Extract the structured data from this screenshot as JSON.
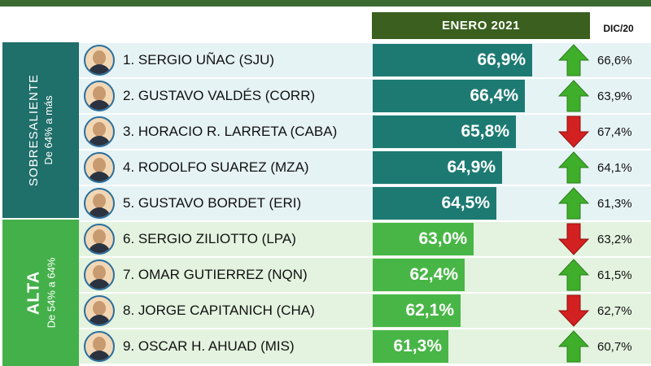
{
  "header": {
    "month": "ENERO 2021",
    "previous": "DIC/20"
  },
  "groups": [
    {
      "title": "SOBRESALIENTE",
      "subtitle": "De 64% a más"
    },
    {
      "title": "ALTA",
      "subtitle": "De 54% a 64%"
    }
  ],
  "colors": {
    "sobresaliente": "#1d7a72",
    "alta": "#48b646",
    "up": "#3fae2a",
    "down": "#d32020"
  },
  "chart_data": {
    "type": "bar",
    "title": "ENERO 2021",
    "categories": [
      "1. SERGIO UÑAC (SJU)",
      "2. GUSTAVO VALDÉS  (CORR)",
      "3. HORACIO R. LARRETA (CABA)",
      "4. RODOLFO SUAREZ (MZA)",
      "5. GUSTAVO BORDET (ERI)",
      "6. SERGIO ZILIOTTO (LPA)",
      "7. OMAR GUTIERREZ (NQN)",
      "8. JORGE CAPITANICH (CHA)",
      "9. OSCAR H. AHUAD  (MIS)"
    ],
    "values": [
      66.9,
      66.4,
      65.8,
      64.9,
      64.5,
      63.0,
      62.4,
      62.1,
      61.3
    ],
    "value_labels": [
      "66,9%",
      "66,4%",
      "65,8%",
      "64,9%",
      "64,5%",
      "63,0%",
      "62,4%",
      "62,1%",
      "61,3%"
    ],
    "previous_values": [
      66.6,
      63.9,
      67.4,
      64.1,
      61.3,
      63.2,
      61.5,
      62.7,
      60.7
    ],
    "previous_labels": [
      "66,6%",
      "63,9%",
      "67,4%",
      "64,1%",
      "61,3%",
      "63,2%",
      "61,5%",
      "62,7%",
      "60,7%"
    ],
    "trend": [
      "up",
      "up",
      "down",
      "up",
      "up",
      "down",
      "up",
      "down",
      "up"
    ],
    "group": [
      "sob",
      "sob",
      "sob",
      "sob",
      "sob",
      "alta",
      "alta",
      "alta",
      "alta"
    ]
  }
}
